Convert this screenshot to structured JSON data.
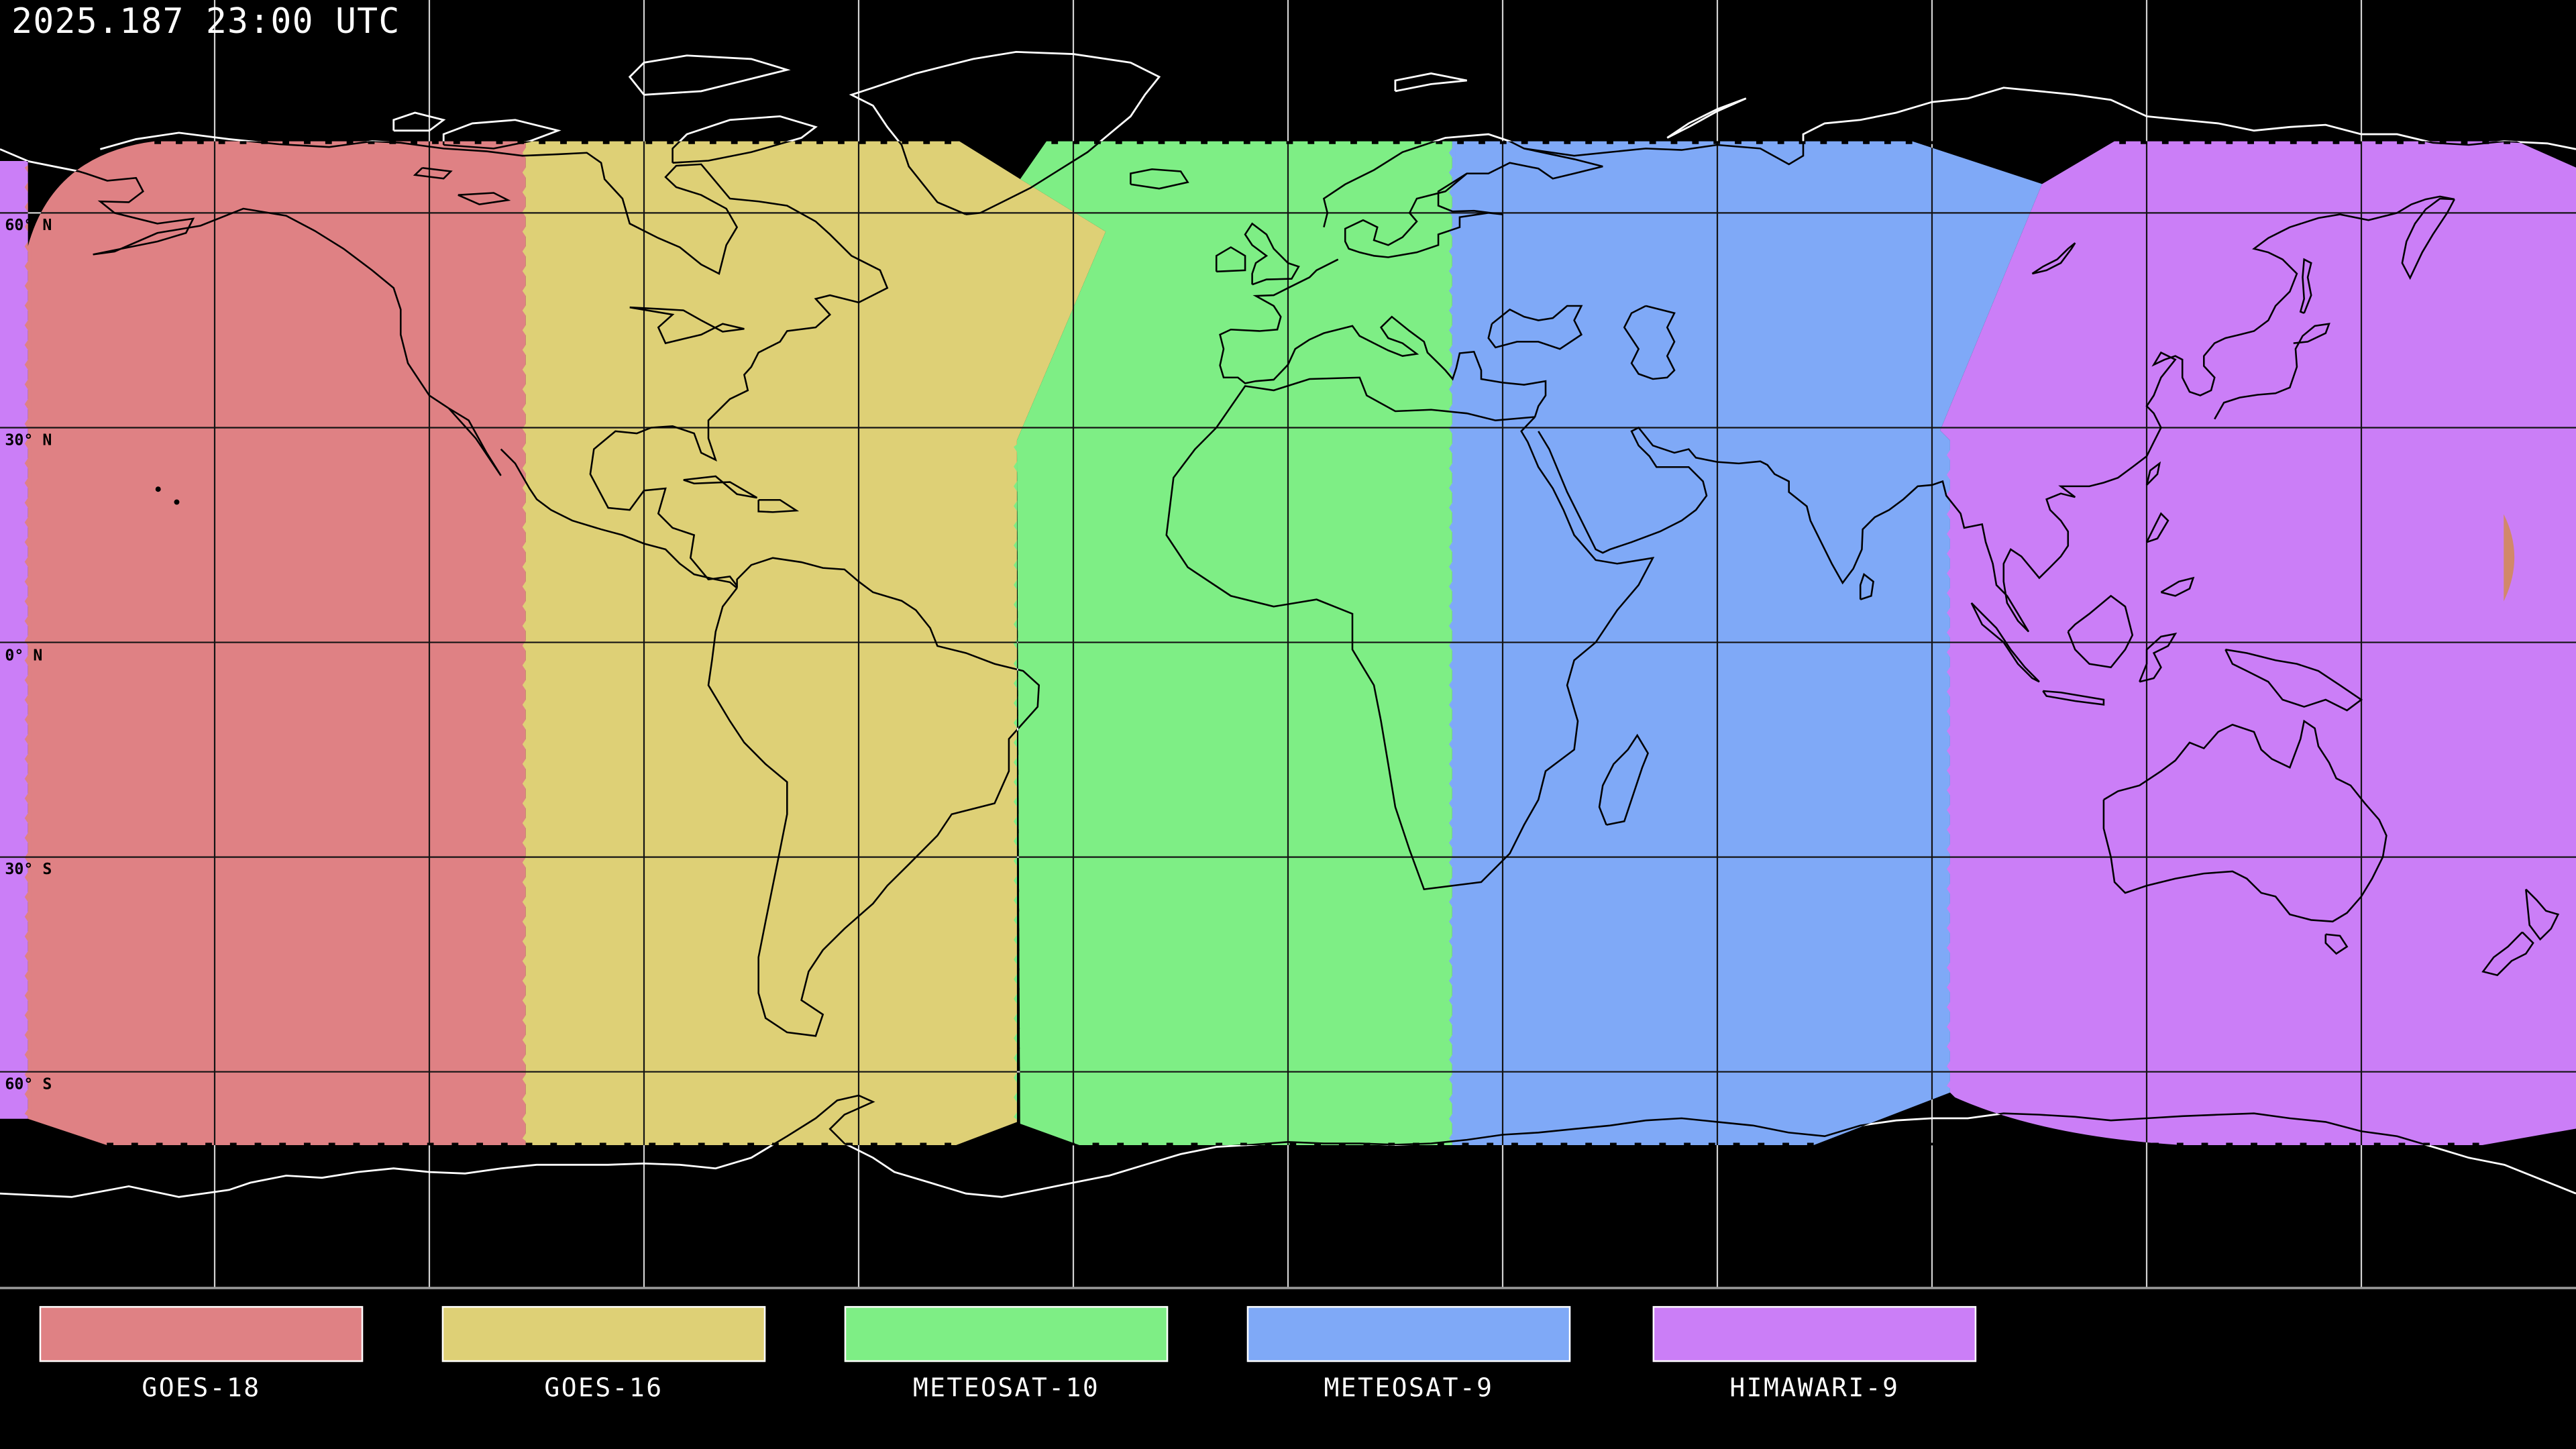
{
  "timestamp": "2025.187 23:00 UTC",
  "map": {
    "latitude_labels": [
      "60° N",
      "30° N",
      "0° N",
      "30° S",
      "60° S"
    ],
    "grid": {
      "latitudes_deg": [
        60,
        30,
        0,
        -30,
        -60
      ],
      "longitude_step_deg": 30
    },
    "colors": {
      "space": "#000000",
      "grid_on_map": "#141414",
      "grid_on_space": "#d2d2d2",
      "coast_on_map": "#000000",
      "coast_on_space": "#ffffff",
      "map_border": "#9a9a9a",
      "anomaly_crescent": "#d2886a",
      "timestamp_text": "#ffffff",
      "latitude_label_text": "#000000"
    }
  },
  "legend": {
    "items": [
      {
        "label": "GOES-18",
        "color": "#df8184"
      },
      {
        "label": "GOES-16",
        "color": "#ded076"
      },
      {
        "label": "METEOSAT-10",
        "color": "#7eee85"
      },
      {
        "label": "METEOSAT-9",
        "color": "#7fa9f7"
      },
      {
        "label": "HIMAWARI-9",
        "color": "#cb7ef7"
      }
    ]
  }
}
